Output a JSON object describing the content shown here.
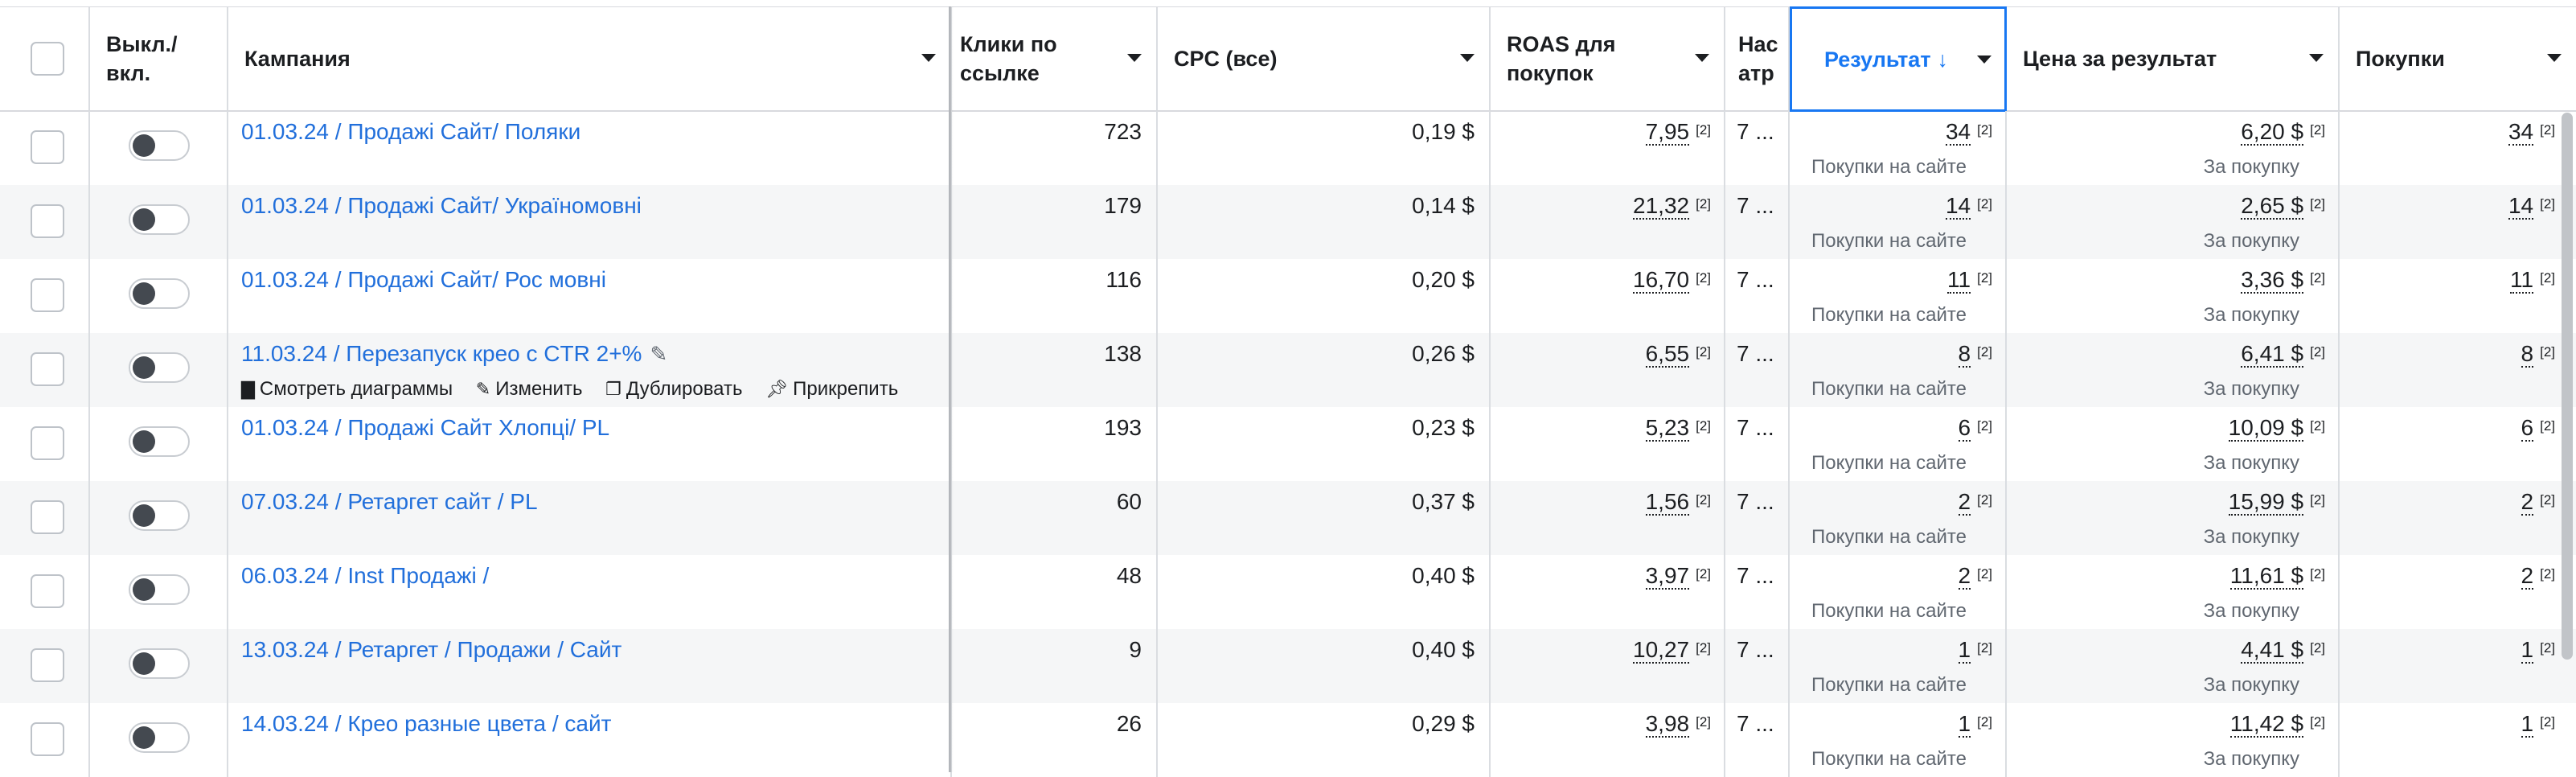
{
  "header": {
    "select_all": "",
    "toggle": "Выкл./ вкл.",
    "campaign": "Кампания",
    "clicks": "Клики по ссылке",
    "cpc": "CPC (все)",
    "roas": "ROAS для покупок",
    "attribution": "Нас атр",
    "result": "Результат",
    "result_sort_icon": "↓",
    "cost_per_result": "Цена за результат",
    "purchases": "Покупки"
  },
  "hover_actions": {
    "charts": "Смотреть диаграммы",
    "edit": "Изменить",
    "duplicate": "Дублировать",
    "pin": "Прикрепить"
  },
  "rows": [
    {
      "campaign": "01.03.24 / Продажі Сайт/ Поляки",
      "clicks": "723",
      "cpc": "0,19 $",
      "roas": "7,95",
      "roas_note": "[2]",
      "attribution": "7 ...",
      "result": "34",
      "result_note": "[2]",
      "result_type": "Покупки на сайте",
      "cost": "6,20 $",
      "cost_note": "[2]",
      "cost_type": "За покупку",
      "purchases": "34",
      "purchases_note": "[2]"
    },
    {
      "campaign": "01.03.24 / Продажі Сайт/ Україномовні",
      "clicks": "179",
      "cpc": "0,14 $",
      "roas": "21,32",
      "roas_note": "[2]",
      "attribution": "7 ...",
      "result": "14",
      "result_note": "[2]",
      "result_type": "Покупки на сайте",
      "cost": "2,65 $",
      "cost_note": "[2]",
      "cost_type": "За покупку",
      "purchases": "14",
      "purchases_note": "[2]"
    },
    {
      "campaign": "01.03.24 / Продажі Сайт/ Рос мовні",
      "clicks": "116",
      "cpc": "0,20 $",
      "roas": "16,70",
      "roas_note": "[2]",
      "attribution": "7 ...",
      "result": "11",
      "result_note": "[2]",
      "result_type": "Покупки на сайте",
      "cost": "3,36 $",
      "cost_note": "[2]",
      "cost_type": "За покупку",
      "purchases": "11",
      "purchases_note": "[2]"
    },
    {
      "campaign": "11.03.24 / Перезапуск крео с CTR 2+%",
      "clicks": "138",
      "cpc": "0,26 $",
      "roas": "6,55",
      "roas_note": "[2]",
      "attribution": "7 ...",
      "result": "8",
      "result_note": "[2]",
      "result_type": "Покупки на сайте",
      "cost": "6,41 $",
      "cost_note": "[2]",
      "cost_type": "За покупку",
      "purchases": "8",
      "purchases_note": "[2]"
    },
    {
      "campaign": "01.03.24 / Продажі Сайт Хлопці/ PL",
      "clicks": "193",
      "cpc": "0,23 $",
      "roas": "5,23",
      "roas_note": "[2]",
      "attribution": "7 ...",
      "result": "6",
      "result_note": "[2]",
      "result_type": "Покупки на сайте",
      "cost": "10,09 $",
      "cost_note": "[2]",
      "cost_type": "За покупку",
      "purchases": "6",
      "purchases_note": "[2]"
    },
    {
      "campaign": "07.03.24 / Ретаргет сайт / PL",
      "clicks": "60",
      "cpc": "0,37 $",
      "roas": "1,56",
      "roas_note": "[2]",
      "attribution": "7 ...",
      "result": "2",
      "result_note": "[2]",
      "result_type": "Покупки на сайте",
      "cost": "15,99 $",
      "cost_note": "[2]",
      "cost_type": "За покупку",
      "purchases": "2",
      "purchases_note": "[2]"
    },
    {
      "campaign": "06.03.24 / Inst Продажі /",
      "clicks": "48",
      "cpc": "0,40 $",
      "roas": "3,97",
      "roas_note": "[2]",
      "attribution": "7 ...",
      "result": "2",
      "result_note": "[2]",
      "result_type": "Покупки на сайте",
      "cost": "11,61 $",
      "cost_note": "[2]",
      "cost_type": "За покупку",
      "purchases": "2",
      "purchases_note": "[2]"
    },
    {
      "campaign": "13.03.24 / Ретаргет / Продажи / Сайт",
      "clicks": "9",
      "cpc": "0,40 $",
      "roas": "10,27",
      "roas_note": "[2]",
      "attribution": "7 ...",
      "result": "1",
      "result_note": "[2]",
      "result_type": "Покупки на сайте",
      "cost": "4,41 $",
      "cost_note": "[2]",
      "cost_type": "За покупку",
      "purchases": "1",
      "purchases_note": "[2]"
    },
    {
      "campaign": "14.03.24 / Крео разные цвета / сайт",
      "clicks": "26",
      "cpc": "0,29 $",
      "roas": "3,98",
      "roas_note": "[2]",
      "attribution": "7 ...",
      "result": "1",
      "result_note": "[2]",
      "result_type": "Покупки на сайте",
      "cost": "11,42 $",
      "cost_note": "[2]",
      "cost_type": "За покупку",
      "purchases": "1",
      "purchases_note": "[2]"
    }
  ],
  "colors": {
    "accent": "#1877f2",
    "link": "#216fdb",
    "alt_row": "#f5f6f7"
  },
  "icons": [
    "pencil-icon",
    "bar-chart-icon",
    "duplicate-icon",
    "pin-icon",
    "caret-down-icon",
    "sort-down-icon"
  ]
}
